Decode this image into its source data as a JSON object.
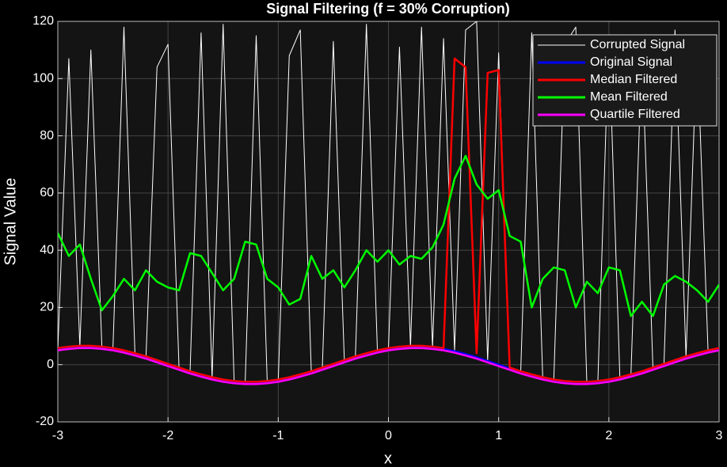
{
  "chart_data": {
    "type": "line",
    "title": "Signal Filtering (f = 30% Corruption)",
    "xlabel": "x",
    "ylabel": "Signal Value",
    "x": [
      -3,
      -2.9,
      -2.8,
      -2.7,
      -2.6,
      -2.5,
      -2.4,
      -2.3,
      -2.2,
      -2.1,
      -2,
      -1.9,
      -1.8,
      -1.7,
      -1.6,
      -1.5,
      -1.4,
      -1.3,
      -1.2,
      -1.1,
      -1,
      -0.9,
      -0.8,
      -0.7,
      -0.6,
      -0.5,
      -0.4,
      -0.3,
      -0.2,
      -0.1,
      0,
      0.1,
      0.2,
      0.3,
      0.4,
      0.5,
      0.6,
      0.7,
      0.8,
      0.9,
      1,
      1.1,
      1.2,
      1.3,
      1.4,
      1.5,
      1.6,
      1.7,
      1.8,
      1.9,
      2,
      2.1,
      2.2,
      2.3,
      2.4,
      2.5,
      2.6,
      2.7,
      2.8,
      2.9,
      3
    ],
    "series": [
      {
        "name": "Corrupted Signal",
        "color": "#ffffff",
        "values": [
          5.5,
          107,
          6.3,
          110,
          6.0,
          5.5,
          118,
          3.7,
          2.6,
          104,
          112,
          -1.3,
          -2.6,
          116,
          -4.7,
          119,
          -6.0,
          -6.3,
          115,
          -6.0,
          -5.5,
          108,
          117,
          -2.6,
          -1.3,
          113,
          1.3,
          2.6,
          119,
          4.7,
          5.5,
          111,
          6.3,
          118,
          6.0,
          114,
          4.7,
          117,
          120,
          1.3,
          109,
          -1.3,
          -2.6,
          116,
          -4.7,
          -5.5,
          112,
          118,
          -6.3,
          -6.0,
          115,
          -4.7,
          -3.7,
          110,
          -1.3,
          0,
          117,
          2.6,
          113,
          4.7,
          5.5
        ]
      },
      {
        "name": "Original Signal",
        "color": "#0000ff",
        "values": [
          5.5,
          6.0,
          6.3,
          6.3,
          6.0,
          5.5,
          4.7,
          3.7,
          2.6,
          1.3,
          0,
          -1.3,
          -2.6,
          -3.7,
          -4.7,
          -5.5,
          -6.0,
          -6.3,
          -6.3,
          -6.0,
          -5.5,
          -4.7,
          -3.7,
          -2.6,
          -1.3,
          0,
          1.3,
          2.6,
          3.7,
          4.7,
          5.5,
          6.0,
          6.3,
          6.3,
          6.0,
          5.5,
          4.7,
          3.7,
          2.6,
          1.3,
          0,
          -1.3,
          -2.6,
          -3.7,
          -4.7,
          -5.5,
          -6.0,
          -6.3,
          -6.3,
          -6.0,
          -5.5,
          -4.7,
          -3.7,
          -2.6,
          -1.3,
          0,
          1.3,
          2.6,
          3.7,
          4.7,
          5.5
        ]
      },
      {
        "name": "Median Filtered",
        "color": "#ff0000",
        "values": [
          5.8,
          6.3,
          6.6,
          6.6,
          6.3,
          5.8,
          5.0,
          4.0,
          2.9,
          1.6,
          0.3,
          -1.0,
          -2.3,
          -3.4,
          -4.4,
          -5.2,
          -5.7,
          -6.0,
          -6.0,
          -5.7,
          -5.2,
          -4.4,
          -3.4,
          -2.3,
          -1.0,
          0.3,
          1.6,
          2.9,
          4.0,
          5.0,
          5.8,
          6.3,
          6.6,
          6.6,
          6.3,
          5.8,
          107,
          104,
          4,
          102,
          103,
          -1.0,
          -2.3,
          -3.4,
          -4.4,
          -5.2,
          -5.7,
          -6.0,
          -6.0,
          -5.7,
          -5.2,
          -4.4,
          -3.4,
          -2.3,
          -1.0,
          0.3,
          1.6,
          2.9,
          4.0,
          5.0,
          5.8
        ]
      },
      {
        "name": "Mean Filtered",
        "color": "#00ff00",
        "values": [
          46,
          38,
          42,
          30,
          19,
          24,
          30,
          26,
          33,
          29,
          27,
          26,
          39,
          38,
          32,
          26,
          30,
          43,
          42,
          30,
          27,
          21,
          23,
          38,
          30,
          33,
          27,
          33,
          40,
          36,
          40,
          35,
          38,
          37,
          41,
          49,
          65,
          73,
          63,
          58,
          61,
          45,
          43,
          20,
          30,
          34,
          33,
          20,
          29,
          25,
          34,
          33,
          17,
          22,
          17,
          28,
          31,
          29,
          26,
          22,
          28
        ]
      },
      {
        "name": "Quartile Filtered",
        "color": "#ff00ff",
        "values": [
          5.0,
          5.5,
          5.8,
          5.8,
          5.5,
          5.0,
          4.2,
          3.2,
          2.1,
          0.8,
          -0.5,
          -1.8,
          -3.1,
          -4.2,
          -5.2,
          -6.0,
          -6.5,
          -6.8,
          -6.8,
          -6.5,
          -6.0,
          -5.2,
          -4.2,
          -3.1,
          -1.8,
          -0.5,
          0.8,
          2.1,
          3.2,
          4.2,
          5.0,
          5.5,
          5.8,
          5.8,
          5.5,
          5.0,
          4.2,
          3.2,
          2.1,
          0.8,
          -0.5,
          -1.8,
          -3.1,
          -4.2,
          -5.2,
          -6.0,
          -6.5,
          -6.8,
          -6.8,
          -6.5,
          -6.0,
          -5.2,
          -4.2,
          -3.1,
          -1.8,
          -0.5,
          0.8,
          2.1,
          3.2,
          4.2,
          5.0
        ]
      }
    ],
    "xlim": [
      -3,
      3
    ],
    "xticks": [
      -3,
      -2,
      -1,
      0,
      1,
      2,
      3
    ],
    "ylim": [
      -20,
      120
    ],
    "yticks": [
      -20,
      0,
      20,
      40,
      60,
      80,
      100,
      120
    ],
    "grid": true,
    "legend": "upper right"
  }
}
